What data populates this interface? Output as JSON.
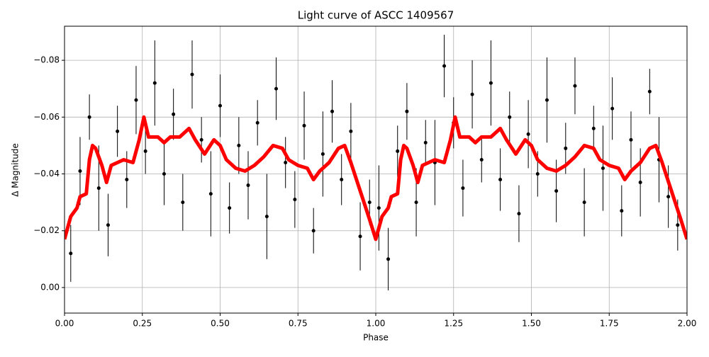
{
  "chart_data": {
    "type": "errorbar",
    "title": "Light curve of ASCC 1409567",
    "xlabel": "Phase",
    "ylabel": "Δ Magnitude",
    "xlim": [
      0,
      2
    ],
    "ylim": [
      0.009,
      -0.092
    ],
    "xticks": [
      {
        "value": 0,
        "label": "0.00"
      },
      {
        "value": 0.25,
        "label": "0.25"
      },
      {
        "value": 0.5,
        "label": "0.50"
      },
      {
        "value": 0.75,
        "label": "0.75"
      },
      {
        "value": 1,
        "label": "1.00"
      },
      {
        "value": 1.25,
        "label": "1.25"
      },
      {
        "value": 1.5,
        "label": "1.50"
      },
      {
        "value": 1.75,
        "label": "1.75"
      },
      {
        "value": 2,
        "label": "2.00"
      }
    ],
    "yticks": [
      {
        "value": 0,
        "label": "0.00"
      },
      {
        "value": -0.02,
        "label": "−0.02"
      },
      {
        "value": -0.04,
        "label": "−0.04"
      },
      {
        "value": -0.06,
        "label": "−0.06"
      },
      {
        "value": -0.08,
        "label": "−0.08"
      }
    ],
    "grid": true,
    "points": {
      "color": "#000000",
      "x": [
        0.02,
        0.05,
        0.08,
        0.11,
        0.14,
        0.17,
        0.2,
        0.23,
        0.26,
        0.29,
        0.32,
        0.35,
        0.38,
        0.41,
        0.44,
        0.47,
        0.5,
        0.53,
        0.56,
        0.59,
        0.62,
        0.65,
        0.68,
        0.71,
        0.74,
        0.77,
        0.8,
        0.83,
        0.86,
        0.89,
        0.92,
        0.95,
        0.98,
        1.01,
        1.04,
        1.07,
        1.1,
        1.13,
        1.16,
        1.19,
        1.22,
        1.25,
        1.28,
        1.31,
        1.34,
        1.37,
        1.4,
        1.43,
        1.46,
        1.49,
        1.52,
        1.55,
        1.58,
        1.61,
        1.64,
        1.67,
        1.7,
        1.73,
        1.76,
        1.79,
        1.82,
        1.85,
        1.88,
        1.91,
        1.94,
        1.97
      ],
      "values": [
        -0.012,
        -0.041,
        -0.06,
        -0.035,
        -0.022,
        -0.055,
        -0.038,
        -0.066,
        -0.048,
        -0.072,
        -0.04,
        -0.061,
        -0.03,
        -0.075,
        -0.052,
        -0.033,
        -0.064,
        -0.028,
        -0.05,
        -0.036,
        -0.058,
        -0.025,
        -0.07,
        -0.044,
        -0.031,
        -0.057,
        -0.02,
        -0.047,
        -0.062,
        -0.038,
        -0.055,
        -0.018,
        -0.03,
        -0.028,
        -0.01,
        -0.048,
        -0.062,
        -0.03,
        -0.051,
        -0.044,
        -0.078,
        -0.058,
        -0.035,
        -0.068,
        -0.045,
        -0.072,
        -0.038,
        -0.06,
        -0.026,
        -0.054,
        -0.04,
        -0.066,
        -0.034,
        -0.049,
        -0.071,
        -0.03,
        -0.056,
        -0.042,
        -0.063,
        -0.027,
        -0.052,
        -0.037,
        -0.069,
        -0.045,
        -0.032,
        -0.022
      ],
      "errors": [
        0.01,
        0.012,
        0.008,
        0.015,
        0.011,
        0.009,
        0.01,
        0.012,
        0.008,
        0.015,
        0.011,
        0.009,
        0.01,
        0.012,
        0.008,
        0.015,
        0.011,
        0.009,
        0.01,
        0.012,
        0.008,
        0.015,
        0.011,
        0.009,
        0.01,
        0.012,
        0.008,
        0.015,
        0.011,
        0.009,
        0.01,
        0.012,
        0.008,
        0.015,
        0.011,
        0.009,
        0.01,
        0.012,
        0.008,
        0.015,
        0.011,
        0.009,
        0.01,
        0.012,
        0.008,
        0.015,
        0.011,
        0.009,
        0.01,
        0.012,
        0.008,
        0.015,
        0.011,
        0.009,
        0.01,
        0.012,
        0.008,
        0.015,
        0.011,
        0.009,
        0.01,
        0.012,
        0.008,
        0.015,
        0.011,
        0.009
      ]
    },
    "curve": {
      "color": "#ff0000",
      "x": [
        0,
        0.02,
        0.04,
        0.05,
        0.07,
        0.08,
        0.09,
        0.1,
        0.12,
        0.135,
        0.15,
        0.17,
        0.19,
        0.22,
        0.24,
        0.255,
        0.27,
        0.3,
        0.32,
        0.34,
        0.37,
        0.4,
        0.42,
        0.45,
        0.48,
        0.5,
        0.52,
        0.55,
        0.58,
        0.61,
        0.64,
        0.67,
        0.7,
        0.72,
        0.75,
        0.78,
        0.8,
        0.82,
        0.85,
        0.88,
        0.9,
        0.92,
        0.95,
        0.98,
        1,
        1.02,
        1.04,
        1.05,
        1.07,
        1.08,
        1.09,
        1.1,
        1.12,
        1.135,
        1.15,
        1.17,
        1.19,
        1.22,
        1.24,
        1.255,
        1.27,
        1.3,
        1.32,
        1.34,
        1.37,
        1.4,
        1.42,
        1.45,
        1.48,
        1.5,
        1.52,
        1.55,
        1.58,
        1.61,
        1.64,
        1.67,
        1.7,
        1.72,
        1.75,
        1.78,
        1.8,
        1.82,
        1.85,
        1.88,
        1.9,
        1.92,
        1.95,
        1.98,
        2
      ],
      "values": [
        -0.017,
        -0.025,
        -0.028,
        -0.032,
        -0.033,
        -0.045,
        -0.05,
        -0.049,
        -0.043,
        -0.037,
        -0.043,
        -0.044,
        -0.045,
        -0.044,
        -0.052,
        -0.06,
        -0.053,
        -0.053,
        -0.051,
        -0.053,
        -0.053,
        -0.056,
        -0.052,
        -0.047,
        -0.052,
        -0.05,
        -0.045,
        -0.042,
        -0.041,
        -0.043,
        -0.046,
        -0.05,
        -0.049,
        -0.045,
        -0.043,
        -0.042,
        -0.038,
        -0.041,
        -0.044,
        -0.049,
        -0.05,
        -0.044,
        -0.034,
        -0.024,
        -0.017,
        -0.025,
        -0.028,
        -0.032,
        -0.033,
        -0.045,
        -0.05,
        -0.049,
        -0.043,
        -0.037,
        -0.043,
        -0.044,
        -0.045,
        -0.044,
        -0.052,
        -0.06,
        -0.053,
        -0.053,
        -0.051,
        -0.053,
        -0.053,
        -0.056,
        -0.052,
        -0.047,
        -0.052,
        -0.05,
        -0.045,
        -0.042,
        -0.041,
        -0.043,
        -0.046,
        -0.05,
        -0.049,
        -0.045,
        -0.043,
        -0.042,
        -0.038,
        -0.041,
        -0.044,
        -0.049,
        -0.05,
        -0.044,
        -0.034,
        -0.024,
        -0.017
      ]
    }
  }
}
